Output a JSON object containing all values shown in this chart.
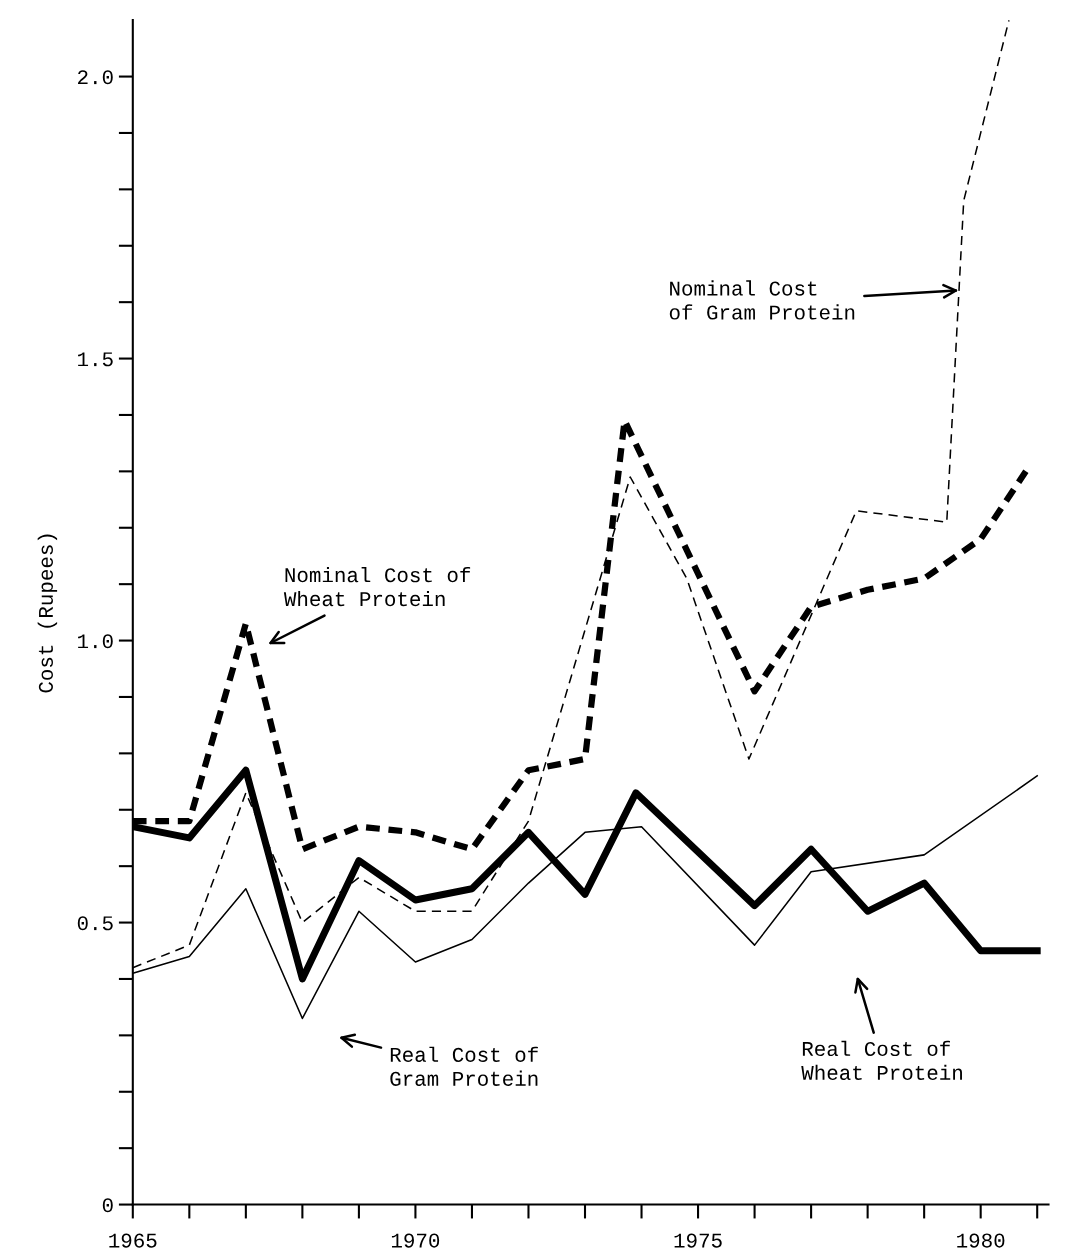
{
  "chart_data": {
    "type": "line",
    "ylabel": "Cost (Rupees)",
    "xlim": [
      1965,
      1981.2
    ],
    "xticks": [
      1965,
      {
        "value": 1966,
        "label": null
      },
      {
        "value": 1967,
        "label": null
      },
      {
        "value": 1968,
        "label": null
      },
      {
        "value": 1969,
        "label": null
      },
      1970,
      {
        "value": 1971,
        "label": null
      },
      {
        "value": 1972,
        "label": null
      },
      {
        "value": 1973,
        "label": null
      },
      {
        "value": 1974,
        "label": null
      },
      1975,
      {
        "value": 1976,
        "label": null
      },
      {
        "value": 1977,
        "label": null
      },
      {
        "value": 1978,
        "label": null
      },
      {
        "value": 1979,
        "label": null
      },
      1980,
      {
        "value": 1981,
        "label": null
      }
    ],
    "ylim": [
      0,
      2.1
    ],
    "yticks": [
      0,
      {
        "value": 0.1,
        "label": null
      },
      {
        "value": 0.2,
        "label": null
      },
      {
        "value": 0.3,
        "label": null
      },
      {
        "value": 0.4,
        "label": null
      },
      0.5,
      {
        "value": 0.6,
        "label": null
      },
      {
        "value": 0.7,
        "label": null
      },
      {
        "value": 0.8,
        "label": null
      },
      {
        "value": 0.9,
        "label": null
      },
      {
        "value": 1.0,
        "label": "1.0"
      },
      {
        "value": 1.1,
        "label": null
      },
      {
        "value": 1.2,
        "label": null
      },
      {
        "value": 1.3,
        "label": null
      },
      {
        "value": 1.4,
        "label": null
      },
      1.5,
      {
        "value": 1.6,
        "label": null
      },
      {
        "value": 1.7,
        "label": null
      },
      {
        "value": 1.8,
        "label": null
      },
      {
        "value": 1.9,
        "label": null
      },
      {
        "value": 2.0,
        "label": "2.0"
      }
    ],
    "grid": false,
    "legend": false,
    "marker": "none",
    "series": [
      {
        "color": "#000000",
        "line_style": "dashed",
        "x": [
          1965,
          1966,
          1967,
          1968,
          1969,
          1970,
          1971,
          1972,
          1973,
          1973.7,
          1976,
          1977,
          1978,
          1979,
          1980,
          1980.8
        ],
        "values": [
          0.68,
          0.68,
          1.03,
          0.63,
          0.67,
          0.66,
          0.63,
          0.77,
          0.79,
          1.39,
          0.91,
          1.06,
          1.09,
          1.11,
          1.18,
          1.3
        ]
      },
      {
        "color": "#000000",
        "line_style": "solid",
        "x": [
          1965,
          1966,
          1967,
          1968,
          1969,
          1970,
          1971,
          1972,
          1973,
          1973.9,
          1976,
          1977,
          1978,
          1979,
          1980,
          1981
        ],
        "values": [
          0.67,
          0.65,
          0.77,
          0.4,
          0.61,
          0.54,
          0.56,
          0.66,
          0.55,
          0.73,
          0.53,
          0.63,
          0.52,
          0.57,
          0.45,
          0.45
        ]
      },
      {
        "color": "#000000",
        "line_style": "dashed",
        "x": [
          1965,
          1966,
          1967,
          1968,
          1969,
          1970,
          1971,
          1972,
          1973.8,
          1974.8,
          1975.9,
          1977.8,
          1979.4,
          1979.7,
          1980.5
        ],
        "values": [
          0.42,
          0.46,
          0.73,
          0.5,
          0.58,
          0.52,
          0.52,
          0.68,
          1.29,
          1.11,
          0.79,
          1.23,
          1.21,
          1.78,
          2.1
        ]
      },
      {
        "color": "#000000",
        "line_style": "solid",
        "x": [
          1965,
          1966,
          1967,
          1968,
          1969,
          1970,
          1971,
          1972,
          1973,
          1974,
          1976,
          1977,
          1979,
          1981
        ],
        "values": [
          0.41,
          0.44,
          0.56,
          0.33,
          0.52,
          0.43,
          0.47,
          0.57,
          0.66,
          0.67,
          0.46,
          0.59,
          0.62,
          0.76
        ]
      }
    ],
    "annotations": [
      "Nominal Cost\nof Gram Protein",
      "Nominal Cost of\nWheat Protein",
      "Real Cost of\nGram Protein",
      "Real Cost of\nWheat Protein"
    ]
  }
}
